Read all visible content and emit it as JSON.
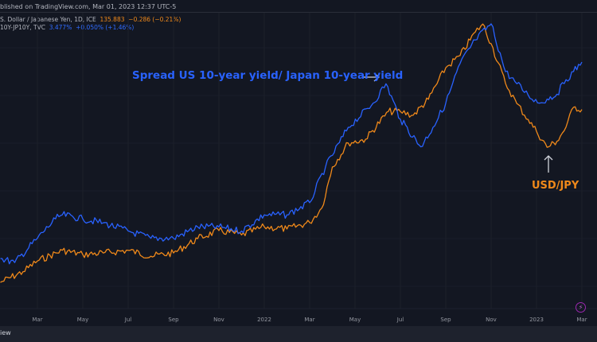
{
  "header": {
    "published": "blished on TradingView.com, Mar 01, 2023 12:37 UTC-5",
    "series1_name": "S. Dollar / Japanese Yen, 1D, ICE",
    "series1_price": "135.883",
    "series1_change": "−0.286 (−0.21%)",
    "series2_name": "10Y-JP10Y, TVC",
    "series2_price": "3.477%",
    "series2_change": "+0.050% (+1.46%)"
  },
  "footer": {
    "label": "iew"
  },
  "colors": {
    "usdjpy": "#f0891a",
    "spread": "#2962ff",
    "background": "#131722"
  },
  "chart_data": {
    "type": "line",
    "title": "",
    "annotations": [
      "Spread US 10-year yield/ Japan 10-year yield",
      "USD/JPY"
    ],
    "x_tick_labels": [
      "Mar",
      "May",
      "Jul",
      "Sep",
      "Nov",
      "2022",
      "Mar",
      "May",
      "Jul",
      "Sep",
      "Nov",
      "2023",
      "Mar"
    ],
    "x_tick_dates": [
      "2021-03-01",
      "2021-05-01",
      "2021-07-01",
      "2021-09-01",
      "2021-11-01",
      "2022-01-01",
      "2022-03-01",
      "2022-05-01",
      "2022-07-01",
      "2022-09-01",
      "2022-11-01",
      "2023-01-01",
      "2023-03-01"
    ],
    "series": [
      {
        "name": "USD/JPY",
        "color": "#f0891a",
        "x": [
          "2021-01-12",
          "2021-02-12",
          "2021-03-01",
          "2021-04-04",
          "2021-05-01",
          "2021-05-28",
          "2021-07-01",
          "2021-08-01",
          "2021-09-01",
          "2021-10-03",
          "2021-11-01",
          "2021-12-01",
          "2022-01-01",
          "2022-02-01",
          "2022-03-01",
          "2022-03-17",
          "2022-04-01",
          "2022-04-22",
          "2022-05-15",
          "2022-06-15",
          "2022-07-01",
          "2022-07-18",
          "2022-08-08",
          "2022-09-01",
          "2022-09-20",
          "2022-10-10",
          "2022-10-20",
          "2022-11-01",
          "2022-11-20",
          "2022-12-05",
          "2022-12-20",
          "2023-01-01",
          "2023-01-15",
          "2023-01-28",
          "2023-02-10",
          "2023-02-20",
          "2023-03-01"
        ],
        "values": [
          103.5,
          105.5,
          107.5,
          109.5,
          108.7,
          109.0,
          109.5,
          108.4,
          109.0,
          111.7,
          113.2,
          112.4,
          113.9,
          113.5,
          114.7,
          117.4,
          125.1,
          129.6,
          130.3,
          135.5,
          135.5,
          134.8,
          137.8,
          143.7,
          146.0,
          150.4,
          151.9,
          148.2,
          140.8,
          137.0,
          134.0,
          131.8,
          128.8,
          129.9,
          132.6,
          136.3,
          135.9
        ]
      },
      {
        "name": "US10Y-JP10Y",
        "color": "#2962ff",
        "x": [
          "2021-01-12",
          "2021-02-01",
          "2021-03-01",
          "2021-03-25",
          "2021-04-04",
          "2021-05-01",
          "2021-05-28",
          "2021-07-01",
          "2021-08-01",
          "2021-09-01",
          "2021-10-03",
          "2021-11-01",
          "2021-12-01",
          "2022-01-01",
          "2022-02-01",
          "2022-03-01",
          "2022-03-22",
          "2022-04-22",
          "2022-05-25",
          "2022-06-12",
          "2022-07-01",
          "2022-07-28",
          "2022-08-14",
          "2022-09-01",
          "2022-09-20",
          "2022-10-10",
          "2022-11-01",
          "2022-11-20",
          "2022-12-05",
          "2022-12-20",
          "2023-01-05",
          "2023-01-15",
          "2023-01-28",
          "2023-02-10",
          "2023-02-20",
          "2023-03-01"
        ],
        "values": [
          1.05,
          1.0,
          1.3,
          1.54,
          1.59,
          1.54,
          1.49,
          1.39,
          1.3,
          1.3,
          1.44,
          1.44,
          1.39,
          1.59,
          1.59,
          1.74,
          2.18,
          2.67,
          2.97,
          3.21,
          2.77,
          2.43,
          2.67,
          2.97,
          3.46,
          3.75,
          3.95,
          3.36,
          3.21,
          3.07,
          2.97,
          3.02,
          3.08,
          3.26,
          3.36,
          3.477
        ]
      }
    ],
    "grid": true,
    "legend": "top-left"
  }
}
